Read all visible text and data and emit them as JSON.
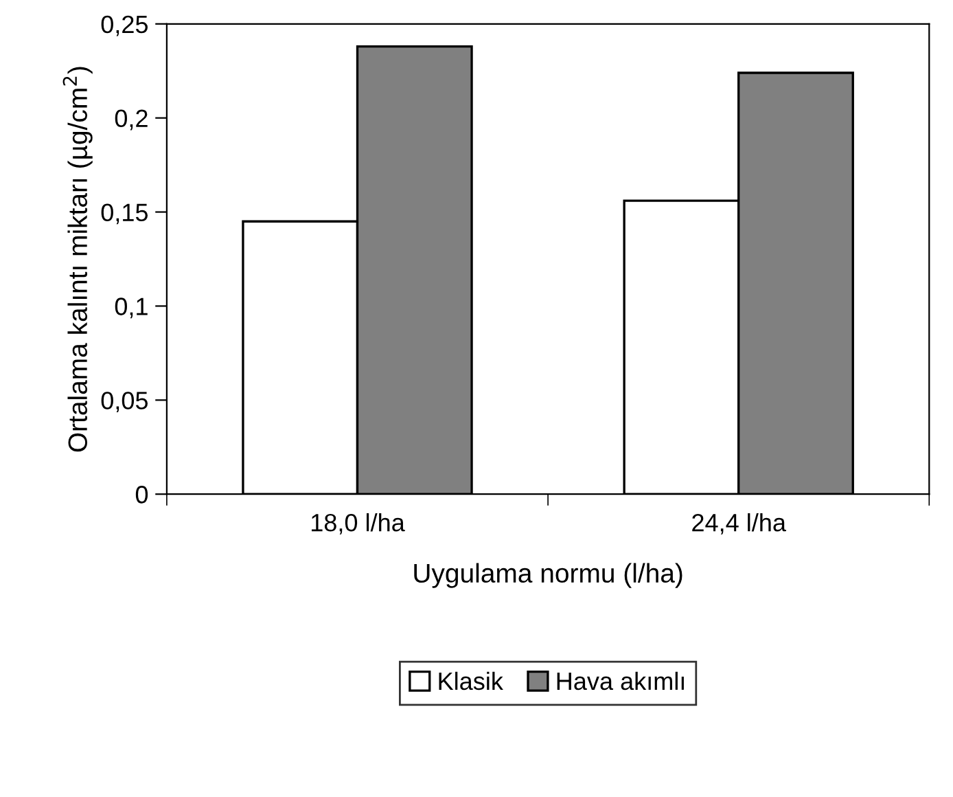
{
  "chart_data": {
    "type": "bar",
    "xlabel": "Uygulama normu (l/ha)",
    "ylabel": "Ortalama kalıntı miktarı (µg/cm$^{2}$)",
    "categories": [
      "18,0 l/ha",
      "24,4 l/ha"
    ],
    "series": [
      {
        "name": "Klasik",
        "color": "#ffffff",
        "values": [
          0.145,
          0.156
        ]
      },
      {
        "name": "Hava akımlı",
        "color": "#808080",
        "values": [
          0.238,
          0.224
        ]
      }
    ],
    "ylim": [
      0,
      0.25
    ],
    "yticks": [
      {
        "value": 0,
        "label": "0"
      },
      {
        "value": 0.05,
        "label": "0,05"
      },
      {
        "value": 0.1,
        "label": "0,1"
      },
      {
        "value": 0.15,
        "label": "0,15"
      },
      {
        "value": 0.2,
        "label": "0,2"
      },
      {
        "value": 0.25,
        "label": "0,25"
      }
    ],
    "grid": false,
    "legend": "bottom"
  }
}
